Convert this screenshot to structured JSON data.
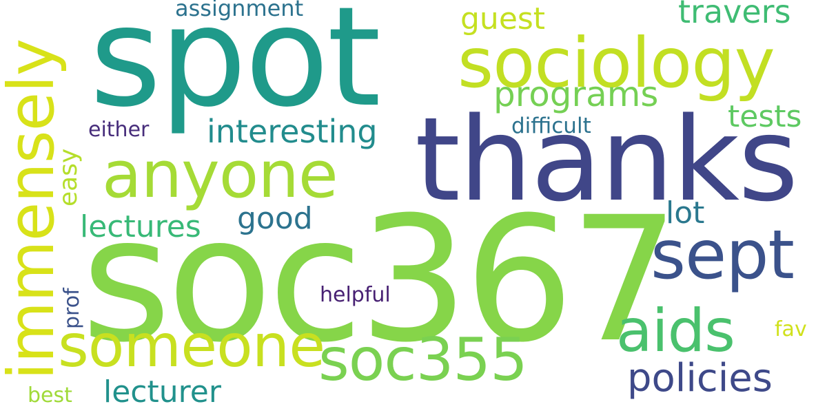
{
  "words": [
    {
      "id": "soc367",
      "text": "soc367",
      "color": "#86d549"
    },
    {
      "id": "spot",
      "text": "spot",
      "color": "#1f9a8a"
    },
    {
      "id": "thanks",
      "text": "thanks",
      "color": "#404688"
    },
    {
      "id": "sociology",
      "text": "sociology",
      "color": "#c2df23"
    },
    {
      "id": "anyone",
      "text": "anyone",
      "color": "#a5db36"
    },
    {
      "id": "immensely",
      "text": "immensely",
      "color": "#d8e219"
    },
    {
      "id": "someone",
      "text": "someone",
      "color": "#c8e020"
    },
    {
      "id": "soc355",
      "text": "soc355",
      "color": "#7ad151"
    },
    {
      "id": "sept",
      "text": "sept",
      "color": "#3b528b"
    },
    {
      "id": "aids",
      "text": "aids",
      "color": "#4ac16d"
    },
    {
      "id": "policies",
      "text": "policies",
      "color": "#3e4989"
    },
    {
      "id": "programs",
      "text": "programs",
      "color": "#75d054"
    },
    {
      "id": "interesting",
      "text": "interesting",
      "color": "#228c8d"
    },
    {
      "id": "lectures",
      "text": "lectures",
      "color": "#38b977"
    },
    {
      "id": "lecturer",
      "text": "lecturer",
      "color": "#21918c"
    },
    {
      "id": "good",
      "text": "good",
      "color": "#2c738e"
    },
    {
      "id": "guest",
      "text": "guest",
      "color": "#c5e021"
    },
    {
      "id": "travers",
      "text": "travers",
      "color": "#3fbc73"
    },
    {
      "id": "tests",
      "text": "tests",
      "color": "#5ec962"
    },
    {
      "id": "lot",
      "text": "lot",
      "color": "#2a788e"
    },
    {
      "id": "assignment",
      "text": "assignment",
      "color": "#2c728e"
    },
    {
      "id": "difficult",
      "text": "difficult",
      "color": "#2c728e"
    },
    {
      "id": "either",
      "text": "either",
      "color": "#472d7b"
    },
    {
      "id": "helpful",
      "text": "helpful",
      "color": "#482173"
    },
    {
      "id": "easy",
      "text": "easy",
      "color": "#b5de2b"
    },
    {
      "id": "prof",
      "text": "prof",
      "color": "#3b528b"
    },
    {
      "id": "fav",
      "text": "fav",
      "color": "#d0e11c"
    },
    {
      "id": "best",
      "text": "best",
      "color": "#a0da39"
    }
  ]
}
